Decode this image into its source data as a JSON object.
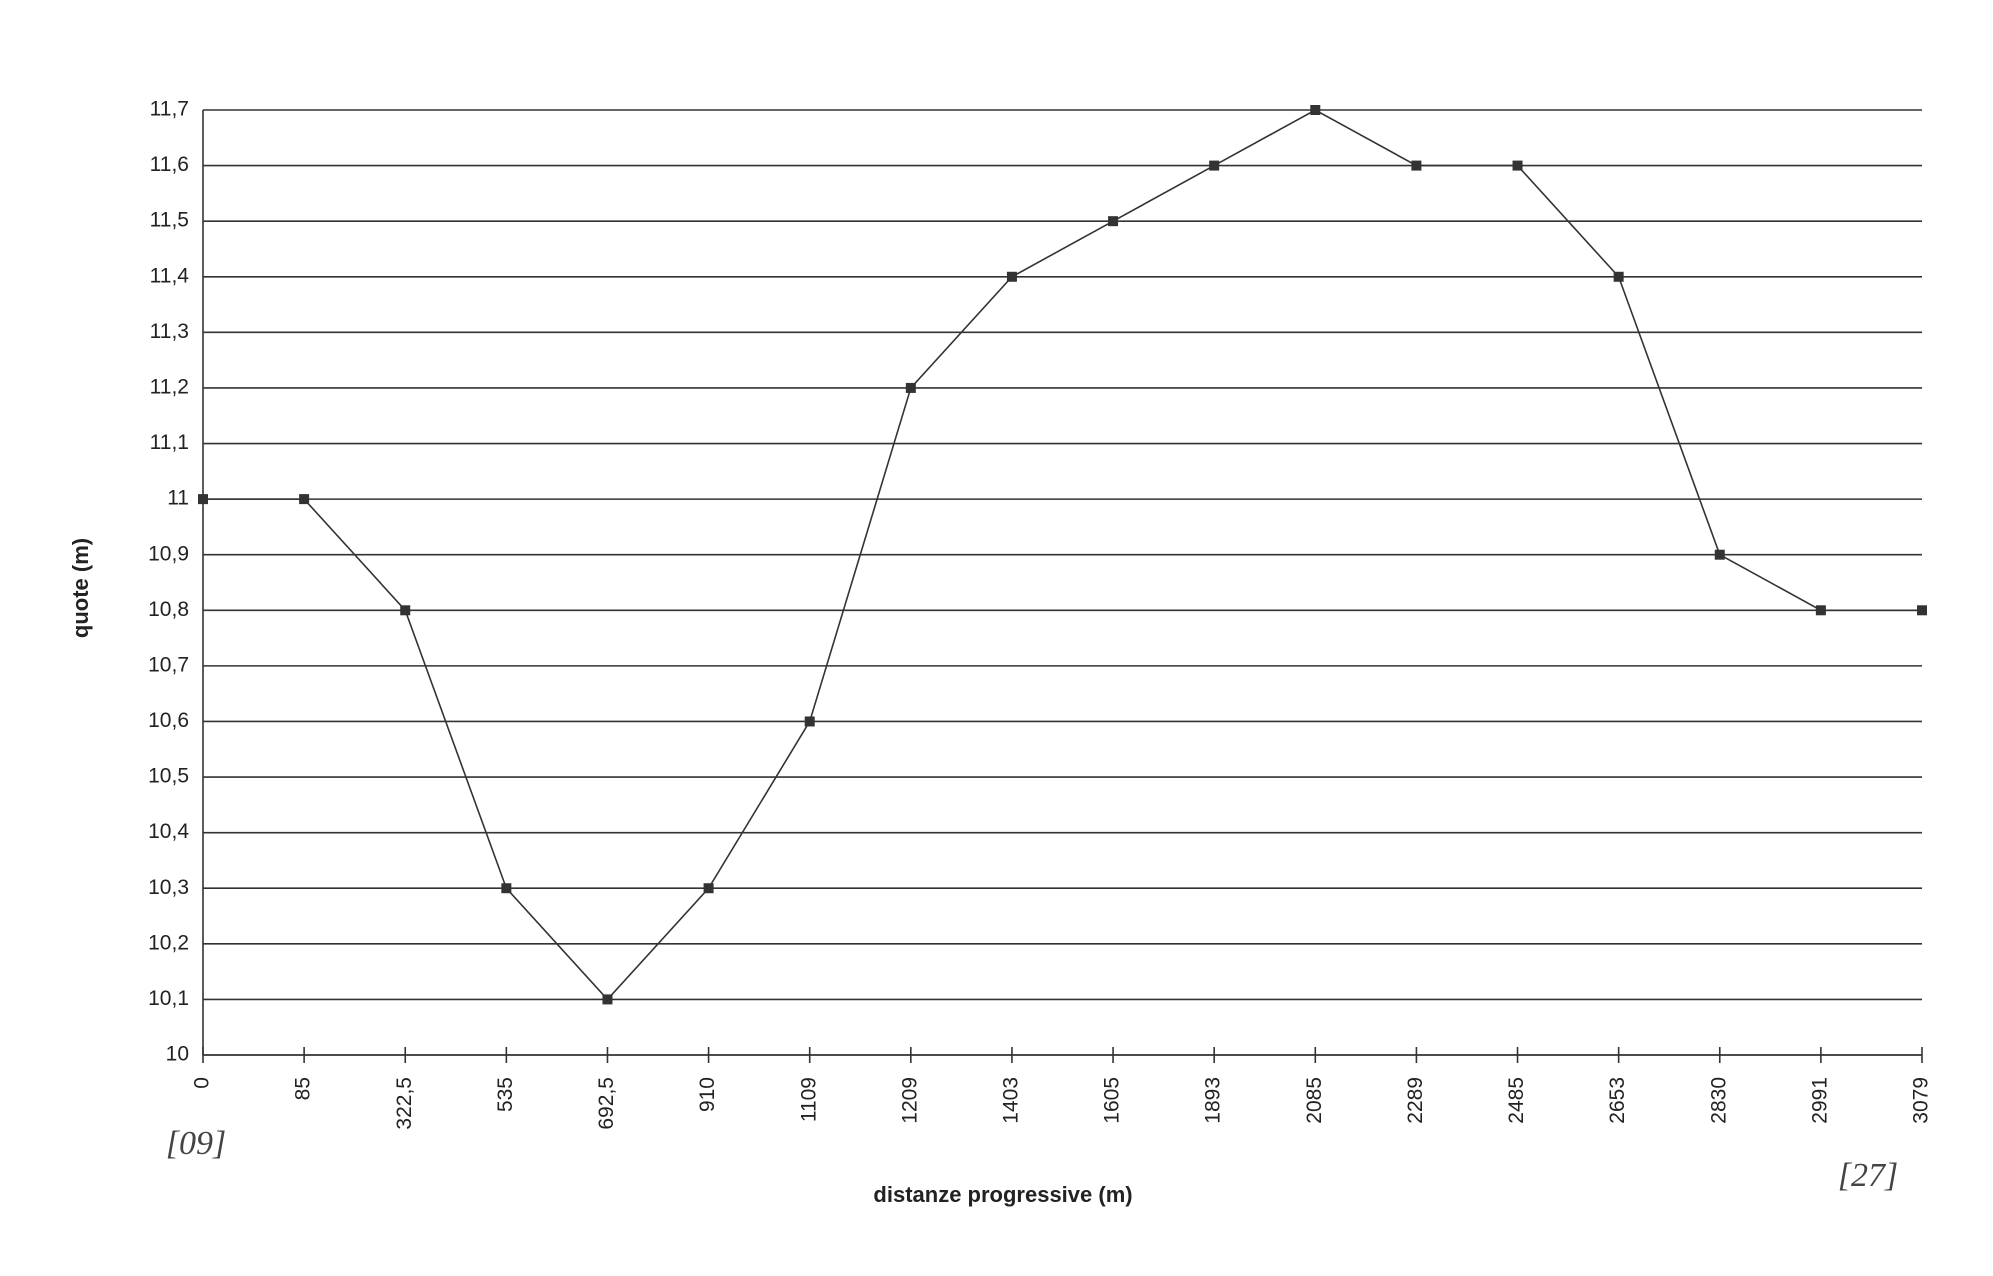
{
  "chart_data": {
    "type": "line",
    "y_label": "quote (m)",
    "x_label": "distanze progressive (m)",
    "categories": [
      "0",
      "85",
      "322,5",
      "535",
      "692,5",
      "910",
      "1109",
      "1209",
      "1403",
      "1605",
      "1893",
      "2085",
      "2289",
      "2485",
      "2653",
      "2830",
      "2991",
      "3079"
    ],
    "values": [
      11,
      11,
      10.8,
      10.3,
      10.1,
      10.3,
      10.6,
      11.2,
      11.4,
      11.5,
      11.6,
      11.7,
      11.6,
      11.6,
      11.4,
      10.9,
      10.8,
      10.8
    ],
    "color": "#333333",
    "ylim": [
      10,
      11.7
    ],
    "yticks": [
      10,
      {
        "value": 10.1,
        "label": "10,1"
      },
      {
        "value": 10.2,
        "label": "10,2"
      },
      {
        "value": 10.3,
        "label": "10,3"
      },
      {
        "value": 10.4,
        "label": "10,4"
      },
      {
        "value": 10.5,
        "label": "10,5"
      },
      {
        "value": 10.6,
        "label": "10,6"
      },
      {
        "value": 10.7,
        "label": "10,7"
      },
      {
        "value": 10.8,
        "label": "10,8"
      },
      {
        "value": 10.9,
        "label": "10,9"
      },
      11,
      {
        "value": 11.1,
        "label": "11,1"
      },
      {
        "value": 11.2,
        "label": "11,2"
      },
      {
        "value": 11.3,
        "label": "11,3"
      },
      {
        "value": 11.4,
        "label": "11,4"
      },
      {
        "value": 11.5,
        "label": "11,5"
      },
      {
        "value": 11.6,
        "label": "11,6"
      },
      {
        "value": 11.7,
        "label": "11,7"
      }
    ],
    "grid": true,
    "annotations": [
      "[09]",
      "[27]"
    ]
  }
}
